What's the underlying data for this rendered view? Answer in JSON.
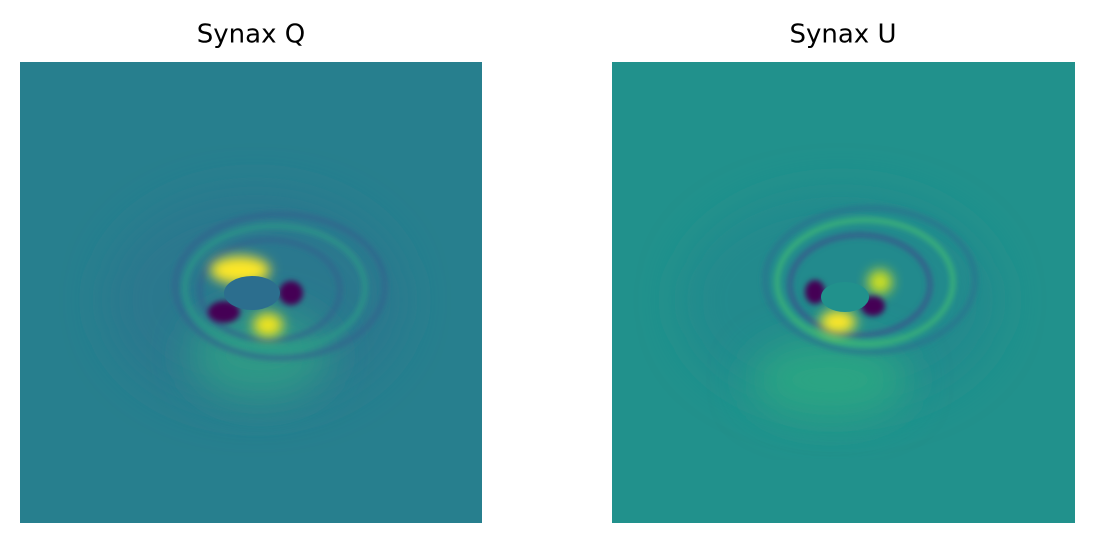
{
  "panels": [
    {
      "title": "Synax Q"
    },
    {
      "title": "Synax U"
    }
  ]
}
